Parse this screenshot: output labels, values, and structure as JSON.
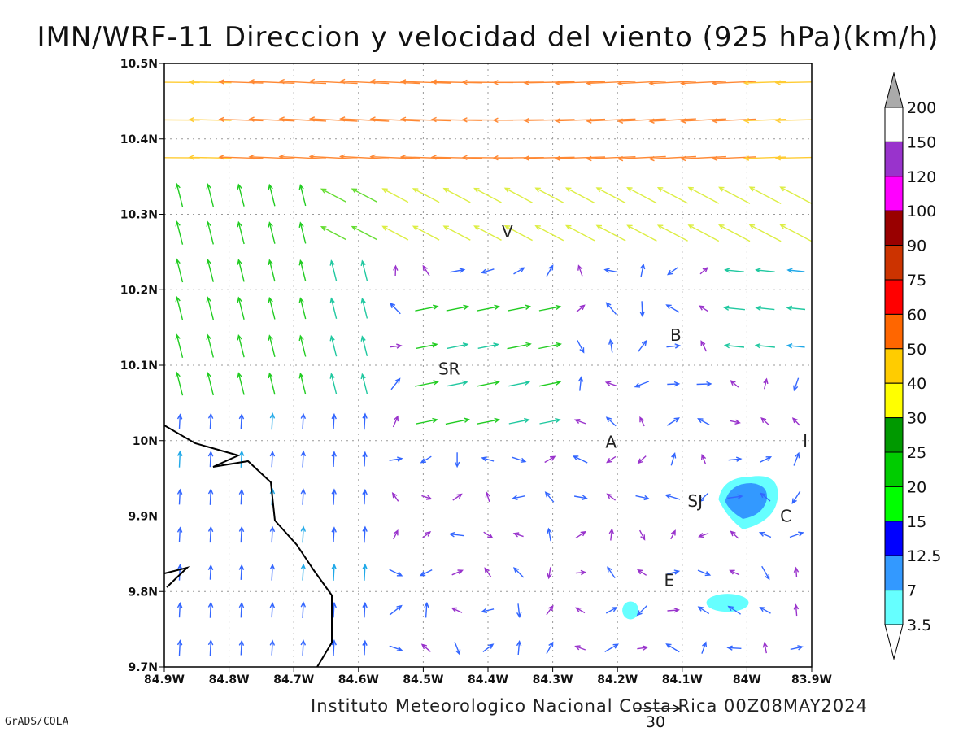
{
  "title": "IMN/WRF-11 Direccion y velocidad del viento (925 hPa)(km/h)",
  "footer": "Instituto Meteorologico Nacional Costa Rica 00Z08MAY2024",
  "credit": "GrADS/COLA",
  "reference_vector_label": "30",
  "x_ticks": [
    "84.9W",
    "84.8W",
    "84.7W",
    "84.6W",
    "84.5W",
    "84.4W",
    "84.3W",
    "84.2W",
    "84.1W",
    "84W",
    "83.9W"
  ],
  "y_ticks": [
    "9.7N",
    "9.8N",
    "9.9N",
    "10N",
    "10.1N",
    "10.2N",
    "10.3N",
    "10.4N",
    "10.5N"
  ],
  "cities": [
    {
      "label": "V",
      "lon": -84.37,
      "lat": 10.277
    },
    {
      "label": "B",
      "lon": -84.11,
      "lat": 10.14
    },
    {
      "label": "SR",
      "lon": -84.46,
      "lat": 10.095
    },
    {
      "label": "A",
      "lon": -84.21,
      "lat": 9.998
    },
    {
      "label": "I",
      "lon": -83.91,
      "lat": 10.0
    },
    {
      "label": "SJ",
      "lon": -84.08,
      "lat": 9.92
    },
    {
      "label": "C",
      "lon": -83.94,
      "lat": 9.9
    },
    {
      "label": "E",
      "lon": -84.12,
      "lat": 9.815
    }
  ],
  "colorbar": {
    "labels": [
      "200",
      "150",
      "120",
      "100",
      "90",
      "75",
      "60",
      "50",
      "40",
      "30",
      "25",
      "20",
      "15",
      "12.5",
      "7",
      "3.5"
    ],
    "colors": [
      "#ffffff",
      "#9933cc",
      "#ff00ff",
      "#990000",
      "#cc3300",
      "#ff0000",
      "#ff6600",
      "#ffcc00",
      "#ffff00",
      "#009900",
      "#00cc00",
      "#00ff00",
      "#0000ff",
      "#3399ff",
      "#66ffff"
    ],
    "top_arrow_color": "#aaaaaa",
    "bottom_arrow_color": "#ffffff"
  },
  "map": {
    "lon_range": [
      -84.9,
      -83.9
    ],
    "lat_range": [
      9.7,
      10.5
    ],
    "coastline_color": "#000000",
    "grid": true,
    "calm_regions": [
      {
        "lon": -84.0,
        "lat": 9.92,
        "speed_class": "7"
      },
      {
        "lon": -84.03,
        "lat": 9.785,
        "speed_class": "3.5"
      },
      {
        "lon": -84.18,
        "lat": 9.775,
        "speed_class": "3.5"
      }
    ]
  }
}
